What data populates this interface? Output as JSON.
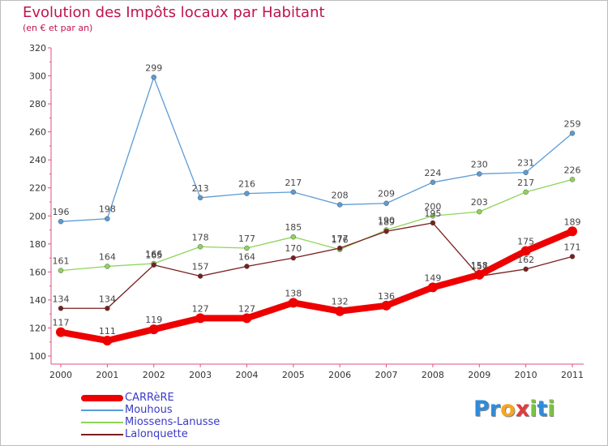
{
  "chart_data": {
    "type": "line",
    "title": "Evolution des Impôts locaux par Habitant",
    "subtitle": "(en € et par an)",
    "xlabel": "",
    "ylabel": "",
    "categories": [
      "2000",
      "2001",
      "2002",
      "2003",
      "2004",
      "2005",
      "2006",
      "2007",
      "2008",
      "2009",
      "2010",
      "2011"
    ],
    "ylim": [
      100,
      320
    ],
    "yticks": [
      "100",
      "120",
      "140",
      "160",
      "180",
      "200",
      "220",
      "240",
      "260",
      "280",
      "300",
      "320"
    ],
    "grid": false,
    "legend_position": "bottom-left",
    "series": [
      {
        "name": "CARRèRE",
        "color": "#ee0000",
        "values": [
          117,
          111,
          119,
          127,
          127,
          138,
          132,
          136,
          149,
          158,
          175,
          189
        ]
      },
      {
        "name": "Mouhous",
        "color": "#5b9bd5",
        "values": [
          196,
          198,
          299,
          213,
          216,
          217,
          208,
          209,
          224,
          230,
          231,
          259
        ]
      },
      {
        "name": "Miossens-Lanusse",
        "color": "#8ed45a",
        "values": [
          161,
          164,
          166,
          178,
          177,
          185,
          176,
          190,
          200,
          203,
          217,
          226
        ]
      },
      {
        "name": "Lalonquette",
        "color": "#7a1f1f",
        "values": [
          134,
          134,
          165,
          157,
          164,
          170,
          177,
          189,
          195,
          157,
          162,
          171
        ]
      }
    ]
  },
  "logo": {
    "letters": [
      "P",
      "r",
      "o",
      "x",
      "i",
      "t",
      "i"
    ],
    "colors": [
      "#2f8bd8",
      "#2f8bd8",
      "#f5a623",
      "#e23b3b",
      "#7cc142",
      "#2f8bd8",
      "#7cc142"
    ]
  }
}
